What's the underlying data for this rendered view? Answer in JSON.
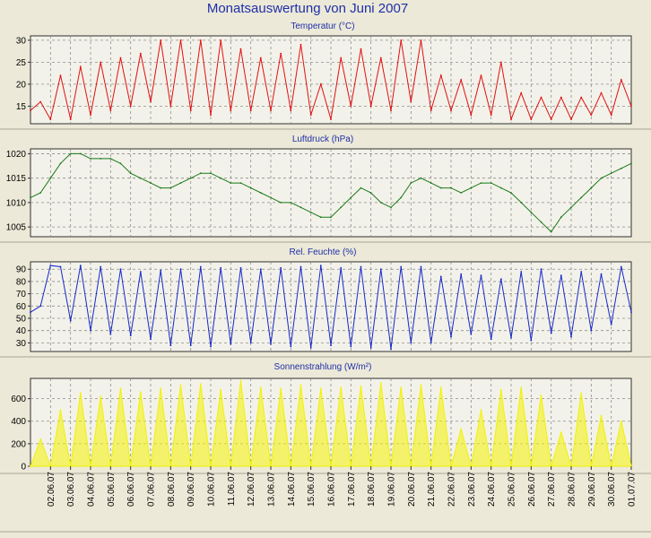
{
  "page": {
    "title": "Monatsauswertung von Juni 2007"
  },
  "colors": {
    "background": "#ece9d8",
    "plot_background": "#f3f2ea",
    "grid": "#8c8c8c",
    "title": "#1f2fa8",
    "temperature": "#e01010",
    "pressure": "#1a7a1a",
    "humidity": "#1428c8",
    "radiation": "#f2f200"
  },
  "chart_data": [
    {
      "id": "temperature",
      "type": "line",
      "title": "Temperatur (°C)",
      "ylim": [
        11,
        31
      ],
      "yticks": [
        15,
        20,
        25,
        30
      ],
      "grid": true,
      "color": "#e01010",
      "x": [
        "01.06.07 00:00",
        "01.06.07 12:00",
        "02.06.07 00:00",
        "02.06.07 12:00",
        "03.06.07 00:00",
        "03.06.07 12:00",
        "04.06.07 00:00",
        "04.06.07 12:00",
        "05.06.07 00:00",
        "05.06.07 12:00",
        "06.06.07 00:00",
        "06.06.07 12:00",
        "07.06.07 00:00",
        "07.06.07 12:00",
        "08.06.07 00:00",
        "08.06.07 12:00",
        "09.06.07 00:00",
        "09.06.07 12:00",
        "10.06.07 00:00",
        "10.06.07 12:00",
        "11.06.07 00:00",
        "11.06.07 12:00",
        "12.06.07 00:00",
        "12.06.07 12:00",
        "13.06.07 00:00",
        "13.06.07 12:00",
        "14.06.07 00:00",
        "14.06.07 12:00",
        "15.06.07 00:00",
        "15.06.07 12:00",
        "16.06.07 00:00",
        "16.06.07 12:00",
        "17.06.07 00:00",
        "17.06.07 12:00",
        "18.06.07 00:00",
        "18.06.07 12:00",
        "19.06.07 00:00",
        "19.06.07 12:00",
        "20.06.07 00:00",
        "20.06.07 12:00",
        "21.06.07 00:00",
        "21.06.07 12:00",
        "22.06.07 00:00",
        "22.06.07 12:00",
        "23.06.07 00:00",
        "23.06.07 12:00",
        "24.06.07 00:00",
        "24.06.07 12:00",
        "25.06.07 00:00",
        "25.06.07 12:00",
        "26.06.07 00:00",
        "26.06.07 12:00",
        "27.06.07 00:00",
        "27.06.07 12:00",
        "28.06.07 00:00",
        "28.06.07 12:00",
        "29.06.07 00:00",
        "29.06.07 12:00",
        "30.06.07 00:00",
        "30.06.07 12:00",
        "01.07.07 00:00"
      ],
      "y": [
        14,
        16,
        12,
        22,
        12,
        24,
        13,
        25,
        14,
        26,
        15,
        27,
        16,
        30,
        15,
        30,
        14,
        30,
        13,
        30,
        14,
        28,
        14,
        26,
        14,
        27,
        14,
        29,
        13,
        20,
        12,
        26,
        15,
        28,
        15,
        26,
        14,
        30,
        16,
        30,
        14,
        22,
        14,
        21,
        13,
        22,
        13,
        25,
        12,
        18,
        12,
        17,
        12,
        17,
        12,
        17,
        13,
        18,
        13,
        21,
        15
      ]
    },
    {
      "id": "pressure",
      "type": "line",
      "title": "Luftdruck (hPa)",
      "ylim": [
        1003,
        1021
      ],
      "yticks": [
        1005,
        1010,
        1015,
        1020
      ],
      "grid": true,
      "color": "#1a7a1a",
      "x": [
        "01.06.07 00:00",
        "01.06.07 12:00",
        "02.06.07 00:00",
        "02.06.07 12:00",
        "03.06.07 00:00",
        "03.06.07 12:00",
        "04.06.07 00:00",
        "04.06.07 12:00",
        "05.06.07 00:00",
        "05.06.07 12:00",
        "06.06.07 00:00",
        "06.06.07 12:00",
        "07.06.07 00:00",
        "07.06.07 12:00",
        "08.06.07 00:00",
        "08.06.07 12:00",
        "09.06.07 00:00",
        "09.06.07 12:00",
        "10.06.07 00:00",
        "10.06.07 12:00",
        "11.06.07 00:00",
        "11.06.07 12:00",
        "12.06.07 00:00",
        "12.06.07 12:00",
        "13.06.07 00:00",
        "13.06.07 12:00",
        "14.06.07 00:00",
        "14.06.07 12:00",
        "15.06.07 00:00",
        "15.06.07 12:00",
        "16.06.07 00:00",
        "16.06.07 12:00",
        "17.06.07 00:00",
        "17.06.07 12:00",
        "18.06.07 00:00",
        "18.06.07 12:00",
        "19.06.07 00:00",
        "19.06.07 12:00",
        "20.06.07 00:00",
        "20.06.07 12:00",
        "21.06.07 00:00",
        "21.06.07 12:00",
        "22.06.07 00:00",
        "22.06.07 12:00",
        "23.06.07 00:00",
        "23.06.07 12:00",
        "24.06.07 00:00",
        "24.06.07 12:00",
        "25.06.07 00:00",
        "25.06.07 12:00",
        "26.06.07 00:00",
        "26.06.07 12:00",
        "27.06.07 00:00",
        "27.06.07 12:00",
        "28.06.07 00:00",
        "28.06.07 12:00",
        "29.06.07 00:00",
        "29.06.07 12:00",
        "30.06.07 00:00",
        "30.06.07 12:00",
        "01.07.07 00:00"
      ],
      "y": [
        1011,
        1012,
        1015,
        1018,
        1020,
        1020,
        1019,
        1019,
        1019,
        1018,
        1016,
        1015,
        1014,
        1013,
        1013,
        1014,
        1015,
        1016,
        1016,
        1015,
        1014,
        1014,
        1013,
        1012,
        1011,
        1010,
        1010,
        1009,
        1008,
        1007,
        1007,
        1009,
        1011,
        1013,
        1012,
        1010,
        1009,
        1011,
        1014,
        1015,
        1014,
        1013,
        1013,
        1012,
        1013,
        1014,
        1014,
        1013,
        1012,
        1010,
        1008,
        1006,
        1004,
        1007,
        1009,
        1011,
        1013,
        1015,
        1016,
        1017,
        1018
      ]
    },
    {
      "id": "humidity",
      "type": "line",
      "title": "Rel. Feuchte (%)",
      "ylim": [
        23,
        96
      ],
      "yticks": [
        30,
        40,
        50,
        60,
        70,
        80,
        90
      ],
      "grid": true,
      "color": "#1428c8",
      "x": [
        "01.06.07 00:00",
        "01.06.07 12:00",
        "02.06.07 00:00",
        "02.06.07 12:00",
        "03.06.07 00:00",
        "03.06.07 12:00",
        "04.06.07 00:00",
        "04.06.07 12:00",
        "05.06.07 00:00",
        "05.06.07 12:00",
        "06.06.07 00:00",
        "06.06.07 12:00",
        "07.06.07 00:00",
        "07.06.07 12:00",
        "08.06.07 00:00",
        "08.06.07 12:00",
        "09.06.07 00:00",
        "09.06.07 12:00",
        "10.06.07 00:00",
        "10.06.07 12:00",
        "11.06.07 00:00",
        "11.06.07 12:00",
        "12.06.07 00:00",
        "12.06.07 12:00",
        "13.06.07 00:00",
        "13.06.07 12:00",
        "14.06.07 00:00",
        "14.06.07 12:00",
        "15.06.07 00:00",
        "15.06.07 12:00",
        "16.06.07 00:00",
        "16.06.07 12:00",
        "17.06.07 00:00",
        "17.06.07 12:00",
        "18.06.07 00:00",
        "18.06.07 12:00",
        "19.06.07 00:00",
        "19.06.07 12:00",
        "20.06.07 00:00",
        "20.06.07 12:00",
        "21.06.07 00:00",
        "21.06.07 12:00",
        "22.06.07 00:00",
        "22.06.07 12:00",
        "23.06.07 00:00",
        "23.06.07 12:00",
        "24.06.07 00:00",
        "24.06.07 12:00",
        "25.06.07 00:00",
        "25.06.07 12:00",
        "26.06.07 00:00",
        "26.06.07 12:00",
        "27.06.07 00:00",
        "27.06.07 12:00",
        "28.06.07 00:00",
        "28.06.07 12:00",
        "29.06.07 00:00",
        "29.06.07 12:00",
        "30.06.07 00:00",
        "30.06.07 12:00",
        "01.07.07 00:00"
      ],
      "y": [
        55,
        60,
        93,
        92,
        48,
        93,
        40,
        92,
        37,
        90,
        36,
        88,
        33,
        89,
        28,
        90,
        28,
        92,
        27,
        91,
        29,
        91,
        30,
        90,
        29,
        91,
        27,
        92,
        26,
        93,
        28,
        91,
        27,
        92,
        26,
        90,
        25,
        92,
        30,
        92,
        30,
        84,
        35,
        86,
        37,
        85,
        33,
        82,
        34,
        88,
        32,
        90,
        38,
        85,
        35,
        88,
        40,
        86,
        45,
        92,
        55
      ]
    },
    {
      "id": "radiation",
      "type": "area",
      "title": "Sonnenstrahlung (W/m²)",
      "ylim": [
        0,
        780
      ],
      "yticks": [
        0,
        200,
        400,
        600
      ],
      "grid": true,
      "color": "#f2f200",
      "x": [
        "01.06.07 00:00",
        "01.06.07 12:00",
        "02.06.07 00:00",
        "02.06.07 12:00",
        "03.06.07 00:00",
        "03.06.07 12:00",
        "04.06.07 00:00",
        "04.06.07 12:00",
        "05.06.07 00:00",
        "05.06.07 12:00",
        "06.06.07 00:00",
        "06.06.07 12:00",
        "07.06.07 00:00",
        "07.06.07 12:00",
        "08.06.07 00:00",
        "08.06.07 12:00",
        "09.06.07 00:00",
        "09.06.07 12:00",
        "10.06.07 00:00",
        "10.06.07 12:00",
        "11.06.07 00:00",
        "11.06.07 12:00",
        "12.06.07 00:00",
        "12.06.07 12:00",
        "13.06.07 00:00",
        "13.06.07 12:00",
        "14.06.07 00:00",
        "14.06.07 12:00",
        "15.06.07 00:00",
        "15.06.07 12:00",
        "16.06.07 00:00",
        "16.06.07 12:00",
        "17.06.07 00:00",
        "17.06.07 12:00",
        "18.06.07 00:00",
        "18.06.07 12:00",
        "19.06.07 00:00",
        "19.06.07 12:00",
        "20.06.07 00:00",
        "20.06.07 12:00",
        "21.06.07 00:00",
        "21.06.07 12:00",
        "22.06.07 00:00",
        "22.06.07 12:00",
        "23.06.07 00:00",
        "23.06.07 12:00",
        "24.06.07 00:00",
        "24.06.07 12:00",
        "25.06.07 00:00",
        "25.06.07 12:00",
        "26.06.07 00:00",
        "26.06.07 12:00",
        "27.06.07 00:00",
        "27.06.07 12:00",
        "28.06.07 00:00",
        "28.06.07 12:00",
        "29.06.07 00:00",
        "29.06.07 12:00",
        "30.06.07 00:00",
        "30.06.07 12:00",
        "01.07.07 00:00"
      ],
      "y": [
        0,
        240,
        0,
        500,
        0,
        650,
        0,
        620,
        0,
        690,
        0,
        660,
        0,
        690,
        0,
        720,
        0,
        730,
        0,
        680,
        0,
        760,
        0,
        700,
        0,
        690,
        0,
        720,
        0,
        690,
        0,
        700,
        0,
        710,
        0,
        740,
        0,
        700,
        0,
        720,
        0,
        700,
        0,
        330,
        0,
        500,
        0,
        680,
        0,
        700,
        0,
        630,
        0,
        300,
        0,
        650,
        0,
        450,
        0,
        400,
        0
      ]
    }
  ],
  "x_axis": {
    "tick_labels": [
      "02.06.07",
      "03.06.07",
      "04.06.07",
      "05.06.07",
      "06.06.07",
      "07.06.07",
      "08.06.07",
      "09.06.07",
      "10.06.07",
      "11.06.07",
      "12.06.07",
      "13.06.07",
      "14.06.07",
      "15.06.07",
      "16.06.07",
      "17.06.07",
      "18.06.07",
      "19.06.07",
      "20.06.07",
      "21.06.07",
      "22.06.07",
      "23.06.07",
      "24.06.07",
      "25.06.07",
      "26.06.07",
      "27.06.07",
      "28.06.07",
      "29.06.07",
      "30.06.07",
      "01.07.07"
    ]
  }
}
